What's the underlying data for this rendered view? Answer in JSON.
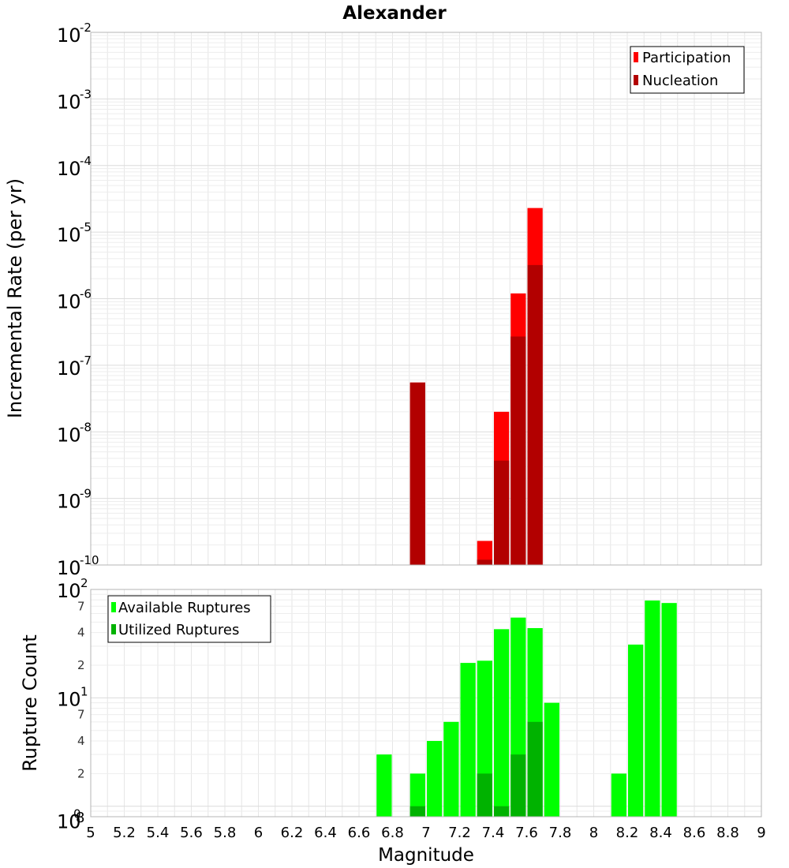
{
  "title": "Alexander",
  "xlabel": "Magnitude",
  "colors": {
    "participation": "#ff0000",
    "nucleation": "#b20000",
    "available": "#00ff00",
    "utilized": "#00b200",
    "grid": "#e6e6e6",
    "frame": "#b4b4b4"
  },
  "chart_data": [
    {
      "type": "bar",
      "panel": "top",
      "ylabel": "Incremental Rate (per yr)",
      "yscale": "log",
      "xlim": [
        5,
        9
      ],
      "ylim": [
        1e-10,
        0.01
      ],
      "grid": true,
      "legend_placement": "top-right",
      "legend": [
        "Participation",
        "Nucleation"
      ],
      "y_tick_labels": [
        {
          "base": "10",
          "exp": "-2"
        },
        {
          "base": "10",
          "exp": "-3"
        },
        {
          "base": "10",
          "exp": "-4"
        },
        {
          "base": "10",
          "exp": "-5"
        },
        {
          "base": "10",
          "exp": "-6"
        },
        {
          "base": "10",
          "exp": "-7"
        },
        {
          "base": "10",
          "exp": "-8"
        },
        {
          "base": "10",
          "exp": "-9"
        },
        {
          "base": "10",
          "exp": "-10"
        }
      ],
      "bin_width": 0.1,
      "series": [
        {
          "name": "Participation",
          "x": [
            6.95,
            7.35,
            7.45,
            7.55,
            7.65
          ],
          "values": [
            5.5e-08,
            2.3e-10,
            2e-08,
            1.2e-06,
            2.3e-05
          ]
        },
        {
          "name": "Nucleation",
          "x": [
            6.95,
            7.35,
            7.45,
            7.55,
            7.65
          ],
          "values": [
            5.5e-08,
            1.2e-10,
            3.7e-09,
            2.7e-07,
            3.2e-06
          ]
        }
      ]
    },
    {
      "type": "bar",
      "panel": "bottom",
      "ylabel": "Rupture Count",
      "yscale": "log",
      "xlim": [
        5,
        9
      ],
      "ylim": [
        0.8,
        100
      ],
      "grid": true,
      "legend_placement": "top-left",
      "legend": [
        "Available Ruptures",
        "Utilized Ruptures"
      ],
      "x_tick_labels": [
        "5",
        "5.2",
        "5.4",
        "5.6",
        "5.8",
        "6",
        "6.2",
        "6.4",
        "6.6",
        "6.8",
        "7",
        "7.2",
        "7.4",
        "7.6",
        "7.8",
        "8",
        "8.2",
        "8.4",
        "8.6",
        "8.8",
        "9"
      ],
      "y_tick_labels": [
        {
          "base": "10",
          "exp": "2"
        },
        {
          "base": "10",
          "exp": "1"
        },
        {
          "base": "10",
          "exp": "0"
        }
      ],
      "y_minor_labels": [
        "7",
        "4",
        "2",
        "7",
        "4",
        "2",
        "8"
      ],
      "bin_width": 0.1,
      "series": [
        {
          "name": "Available Ruptures",
          "x": [
            6.75,
            6.95,
            7.05,
            7.15,
            7.25,
            7.35,
            7.45,
            7.55,
            7.65,
            7.75,
            8.15,
            8.25,
            8.35,
            8.45
          ],
          "values": [
            3,
            2,
            4,
            6,
            21,
            22,
            43,
            55,
            44,
            9,
            2,
            31,
            79,
            75
          ]
        },
        {
          "name": "Utilized Ruptures",
          "x": [
            6.95,
            7.35,
            7.45,
            7.55,
            7.65
          ],
          "values": [
            1,
            2,
            1,
            3,
            6
          ]
        }
      ]
    }
  ]
}
